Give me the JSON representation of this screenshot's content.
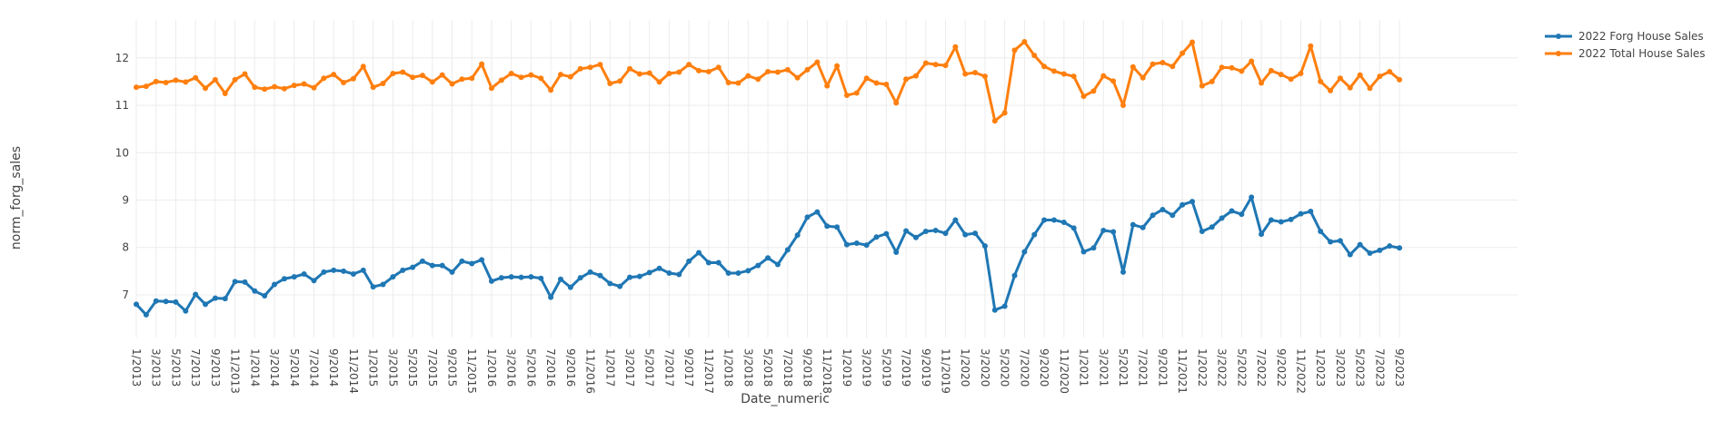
{
  "chart_data": {
    "type": "line",
    "xlabel": "Date_numeric",
    "ylabel": "norm_forg_sales",
    "ylim": [
      6.1,
      12.8
    ],
    "y_ticks": [
      7,
      8,
      9,
      10,
      11,
      12
    ],
    "grid": true,
    "legend_position": "top-right",
    "x_tick_labels": [
      "1/2013",
      "3/2013",
      "5/2013",
      "7/2013",
      "9/2013",
      "11/2013",
      "1/2014",
      "3/2014",
      "5/2014",
      "7/2014",
      "9/2014",
      "11/2014",
      "1/2015",
      "3/2015",
      "5/2015",
      "7/2015",
      "9/2015",
      "11/2015",
      "1/2016",
      "3/2016",
      "5/2016",
      "7/2016",
      "9/2016",
      "11/2016",
      "1/2017",
      "3/2017",
      "5/2017",
      "7/2017",
      "9/2017",
      "11/2017",
      "1/2018",
      "3/2018",
      "5/2018",
      "7/2018",
      "9/2018",
      "11/2018",
      "1/2019",
      "3/2019",
      "5/2019",
      "7/2019",
      "9/2019",
      "11/2019",
      "1/2020",
      "3/2020",
      "5/2020",
      "7/2020",
      "9/2020",
      "11/2020",
      "1/2021",
      "3/2021",
      "5/2021",
      "7/2021",
      "9/2021",
      "11/2021",
      "1/2022",
      "3/2022",
      "5/2022",
      "7/2022",
      "9/2022",
      "11/2022",
      "1/2023",
      "3/2023",
      "5/2023",
      "7/2023",
      "9/2023"
    ],
    "series": [
      {
        "name": "2022 Forg House Sales",
        "color": "#1f77b4",
        "values": [
          6.8,
          6.58,
          6.87,
          6.86,
          6.85,
          6.66,
          7.01,
          6.8,
          6.93,
          6.92,
          7.28,
          7.27,
          7.08,
          6.98,
          7.22,
          7.34,
          7.38,
          7.44,
          7.3,
          7.48,
          7.52,
          7.5,
          7.44,
          7.52,
          7.17,
          7.22,
          7.38,
          7.52,
          7.58,
          7.71,
          7.62,
          7.62,
          7.48,
          7.71,
          7.66,
          7.74,
          7.29,
          7.36,
          7.38,
          7.37,
          7.38,
          7.35,
          6.95,
          7.33,
          7.16,
          7.36,
          7.48,
          7.41,
          7.24,
          7.18,
          7.37,
          7.39,
          7.47,
          7.56,
          7.46,
          7.43,
          7.71,
          7.89,
          7.68,
          7.68,
          7.46,
          7.46,
          7.51,
          7.62,
          7.78,
          7.64,
          7.95,
          8.26,
          8.64,
          8.75,
          8.45,
          8.43,
          8.06,
          8.09,
          8.05,
          8.22,
          8.29,
          7.9,
          8.35,
          8.21,
          8.34,
          8.36,
          8.3,
          8.58,
          8.27,
          8.3,
          8.03,
          6.68,
          6.76,
          7.41,
          7.91,
          8.27,
          8.58,
          8.58,
          8.53,
          8.41,
          7.91,
          7.99,
          8.36,
          8.33,
          7.48,
          8.48,
          8.42,
          8.68,
          8.8,
          8.68,
          8.9,
          8.97,
          8.34,
          8.43,
          8.62,
          8.77,
          8.7,
          9.06,
          8.28,
          8.58,
          8.54,
          8.59,
          8.71,
          8.76,
          8.34,
          8.12,
          8.14,
          7.85,
          8.06,
          7.88,
          7.94,
          8.03,
          7.99
        ]
      },
      {
        "name": "2022 Total House Sales",
        "color": "#ff7f0e",
        "values": [
          11.38,
          11.4,
          11.5,
          11.48,
          11.53,
          11.49,
          11.58,
          11.36,
          11.54,
          11.25,
          11.54,
          11.66,
          11.38,
          11.34,
          11.39,
          11.35,
          11.42,
          11.45,
          11.37,
          11.57,
          11.65,
          11.48,
          11.56,
          11.82,
          11.38,
          11.46,
          11.67,
          11.7,
          11.59,
          11.63,
          11.49,
          11.64,
          11.45,
          11.55,
          11.57,
          11.87,
          11.36,
          11.53,
          11.67,
          11.59,
          11.64,
          11.57,
          11.32,
          11.65,
          11.6,
          11.77,
          11.8,
          11.86,
          11.46,
          11.51,
          11.77,
          11.66,
          11.68,
          11.49,
          11.67,
          11.7,
          11.86,
          11.73,
          11.71,
          11.8,
          11.48,
          11.47,
          11.62,
          11.55,
          11.71,
          11.7,
          11.75,
          11.58,
          11.75,
          11.91,
          11.41,
          11.83,
          11.21,
          11.26,
          11.57,
          11.47,
          11.44,
          11.05,
          11.55,
          11.62,
          11.89,
          11.86,
          11.84,
          12.23,
          11.66,
          11.69,
          11.61,
          10.67,
          10.84,
          12.16,
          12.34,
          12.05,
          11.82,
          11.72,
          11.66,
          11.61,
          11.19,
          11.3,
          11.62,
          11.51,
          11.0,
          11.81,
          11.58,
          11.87,
          11.9,
          11.82,
          12.1,
          12.33,
          11.41,
          11.5,
          11.8,
          11.79,
          11.72,
          11.93,
          11.47,
          11.73,
          11.65,
          11.55,
          11.67,
          12.25,
          11.5,
          11.31,
          11.57,
          11.37,
          11.64,
          11.36,
          11.61,
          11.71,
          11.54
        ]
      }
    ]
  }
}
